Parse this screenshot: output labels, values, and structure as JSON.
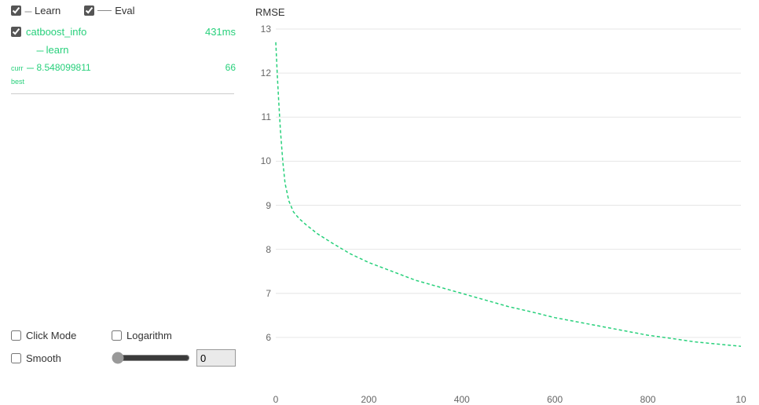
{
  "legend": {
    "learn": {
      "label": "Learn",
      "checked": true,
      "style": "dashed",
      "color": "#888888"
    },
    "eval": {
      "label": "Eval",
      "checked": true,
      "style": "solid",
      "color": "#888888"
    }
  },
  "runs": [
    {
      "name": "catboost_info",
      "time": "431ms",
      "checked": true,
      "color": "#27d07b",
      "series": [
        {
          "name": "learn",
          "curr_value": "8.548099811",
          "curr_iter": "66",
          "best_label": "best"
        }
      ]
    }
  ],
  "controls": {
    "click_mode": {
      "label": "Click Mode",
      "checked": false
    },
    "logarithm": {
      "label": "Logarithm",
      "checked": false
    },
    "smooth": {
      "label": "Smooth",
      "checked": false,
      "slider_value": 0,
      "slider_min": 0,
      "slider_max": 100,
      "number_value": "0"
    }
  },
  "chart": {
    "title": "RMSE",
    "type": "line",
    "xlim": [
      0,
      1000
    ],
    "ylim": [
      5.5,
      13
    ],
    "xtick_step": 200,
    "xticks": [
      0,
      200,
      400,
      600,
      800
    ],
    "xticks_extra_right": "10",
    "ytick_step": 1,
    "yticks": [
      6,
      7,
      8,
      9,
      10,
      11,
      12,
      13
    ],
    "grid_color": "#e6e6e6",
    "background_color": "#ffffff",
    "axis_color": "#cccccc",
    "tick_fontsize": 12,
    "tick_color": "#666666",
    "series": [
      {
        "name": "learn",
        "color": "#27d07b",
        "dash": "4,3",
        "line_width": 1.5,
        "points": [
          [
            0,
            12.7
          ],
          [
            3,
            12.0
          ],
          [
            6,
            11.4
          ],
          [
            10,
            10.7
          ],
          [
            15,
            10.0
          ],
          [
            20,
            9.5
          ],
          [
            28,
            9.1
          ],
          [
            38,
            8.85
          ],
          [
            50,
            8.7
          ],
          [
            66,
            8.55
          ],
          [
            90,
            8.35
          ],
          [
            120,
            8.15
          ],
          [
            160,
            7.9
          ],
          [
            200,
            7.7
          ],
          [
            250,
            7.5
          ],
          [
            300,
            7.3
          ],
          [
            350,
            7.15
          ],
          [
            400,
            7.0
          ],
          [
            450,
            6.85
          ],
          [
            500,
            6.7
          ],
          [
            550,
            6.58
          ],
          [
            600,
            6.45
          ],
          [
            650,
            6.35
          ],
          [
            700,
            6.25
          ],
          [
            750,
            6.15
          ],
          [
            800,
            6.05
          ],
          [
            850,
            5.98
          ],
          [
            900,
            5.9
          ],
          [
            950,
            5.85
          ],
          [
            1000,
            5.8
          ]
        ]
      }
    ]
  }
}
